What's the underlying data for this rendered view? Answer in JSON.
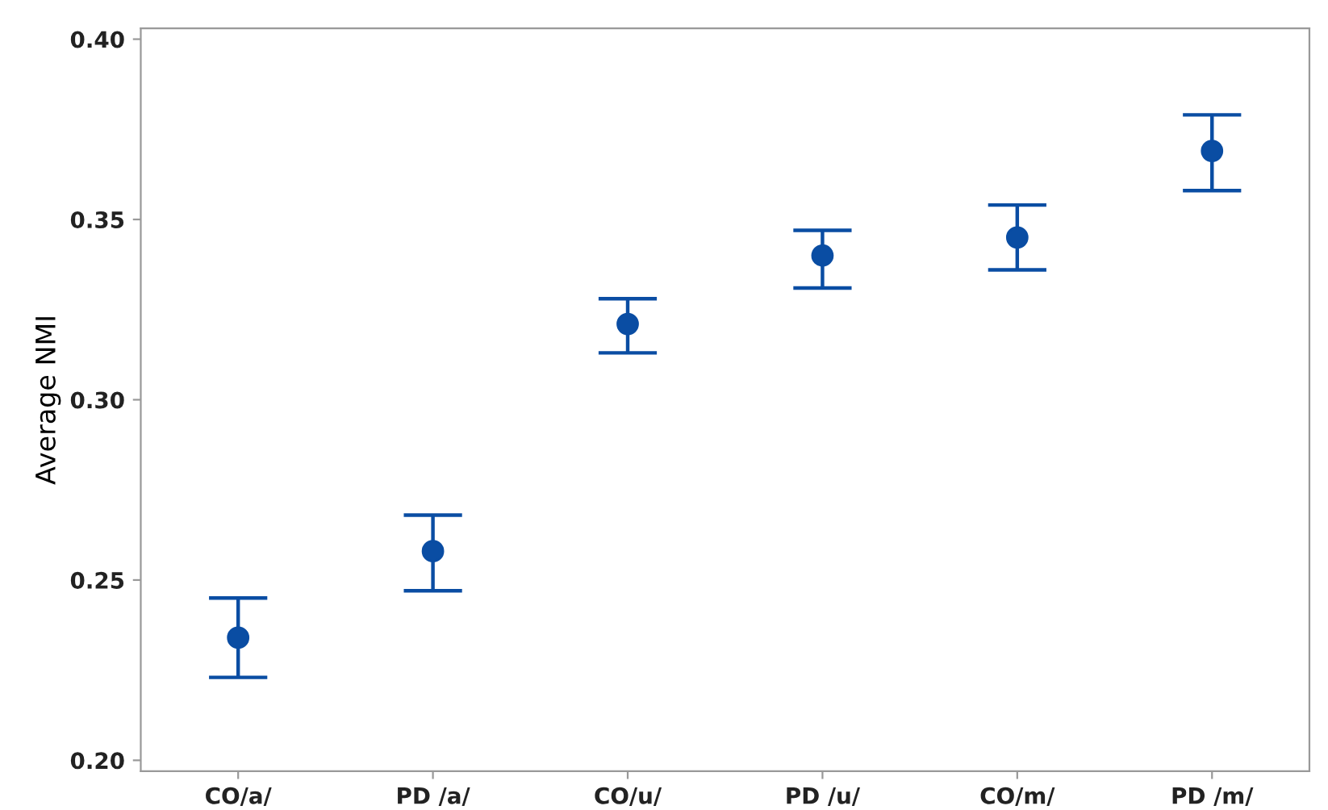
{
  "chart_data": {
    "type": "scatter",
    "ylabel": "Average NMI",
    "categories": [
      "CO/a/",
      "PD /a/",
      "CO/u/",
      "PD /u/",
      "CO/m/",
      "PD /m/"
    ],
    "values": [
      0.234,
      0.258,
      0.321,
      0.34,
      0.345,
      0.369
    ],
    "errors": [
      [
        0.223,
        0.245
      ],
      [
        0.247,
        0.268
      ],
      [
        0.313,
        0.328
      ],
      [
        0.331,
        0.347
      ],
      [
        0.336,
        0.354
      ],
      [
        0.358,
        0.379
      ]
    ],
    "color": "#0a4da3",
    "marker": "circle",
    "grid": false,
    "ylim": [
      0.197,
      0.403
    ],
    "yticks": [
      {
        "value": 0.2,
        "label": "0.20"
      },
      0.25,
      {
        "value": 0.3,
        "label": "0.30"
      },
      0.35,
      {
        "value": 0.4,
        "label": "0.40"
      }
    ]
  }
}
